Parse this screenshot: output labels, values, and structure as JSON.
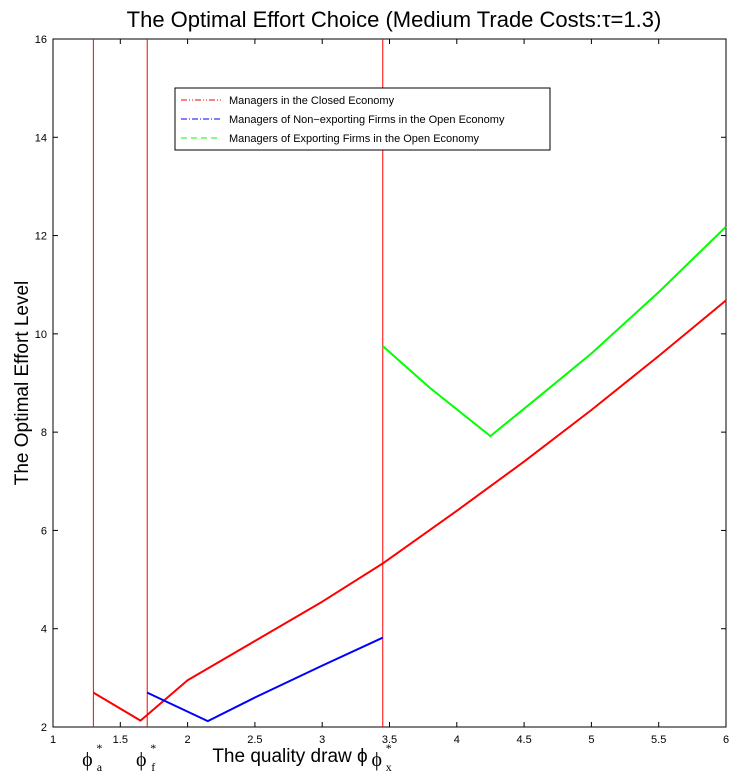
{
  "chart_data": {
    "type": "line",
    "title": "The Optimal Effort Choice (Medium Trade Costs:τ=1.3)",
    "xlabel": "The quality draw ϕ",
    "ylabel": "The Optimal Effort Level",
    "xlim": [
      1,
      6
    ],
    "ylim": [
      2,
      16
    ],
    "xticks": [
      "1",
      "1.5",
      "2",
      "2.5",
      "3",
      "3.5",
      "4",
      "4.5",
      "5",
      "5.5",
      "6"
    ],
    "yticks": [
      "2",
      "4",
      "6",
      "8",
      "10",
      "12",
      "14",
      "16"
    ],
    "grid": false,
    "legend_position": "top-center",
    "colors": {
      "closed": "#ff0000",
      "nonexport": "#0000ff",
      "export": "#00ff00",
      "cutoff": "#ff0000"
    },
    "series": [
      {
        "name": "Managers in the Closed Economy",
        "key": "closed",
        "x": [
          1.3,
          1.65,
          2.0,
          2.5,
          3.0,
          3.45,
          4.0,
          4.5,
          5.0,
          5.5,
          6.0
        ],
        "y": [
          2.7,
          2.13,
          2.95,
          3.75,
          4.55,
          5.33,
          6.4,
          7.4,
          8.45,
          9.55,
          10.68
        ]
      },
      {
        "name": "Managers of Non−exporting Firms in the Open Economy",
        "key": "nonexport",
        "x": [
          1.7,
          2.15,
          2.5,
          3.0,
          3.45
        ],
        "y": [
          2.7,
          2.12,
          2.6,
          3.25,
          3.82
        ]
      },
      {
        "name": "Managers of Exporting Firms in the Open Economy",
        "key": "export",
        "x": [
          3.45,
          3.8,
          4.25,
          4.6,
          5.0,
          5.5,
          6.0
        ],
        "y": [
          9.75,
          8.9,
          7.92,
          8.7,
          9.6,
          10.85,
          12.18
        ]
      }
    ],
    "cutoffs": [
      {
        "x": 1.3,
        "symbol": "ϕ",
        "sub": "a",
        "sup": "*"
      },
      {
        "x": 1.7,
        "symbol": "ϕ",
        "sub": "f",
        "sup": "*"
      },
      {
        "x": 3.45,
        "symbol": "ϕ",
        "sub": "x",
        "sup": "*"
      }
    ]
  }
}
